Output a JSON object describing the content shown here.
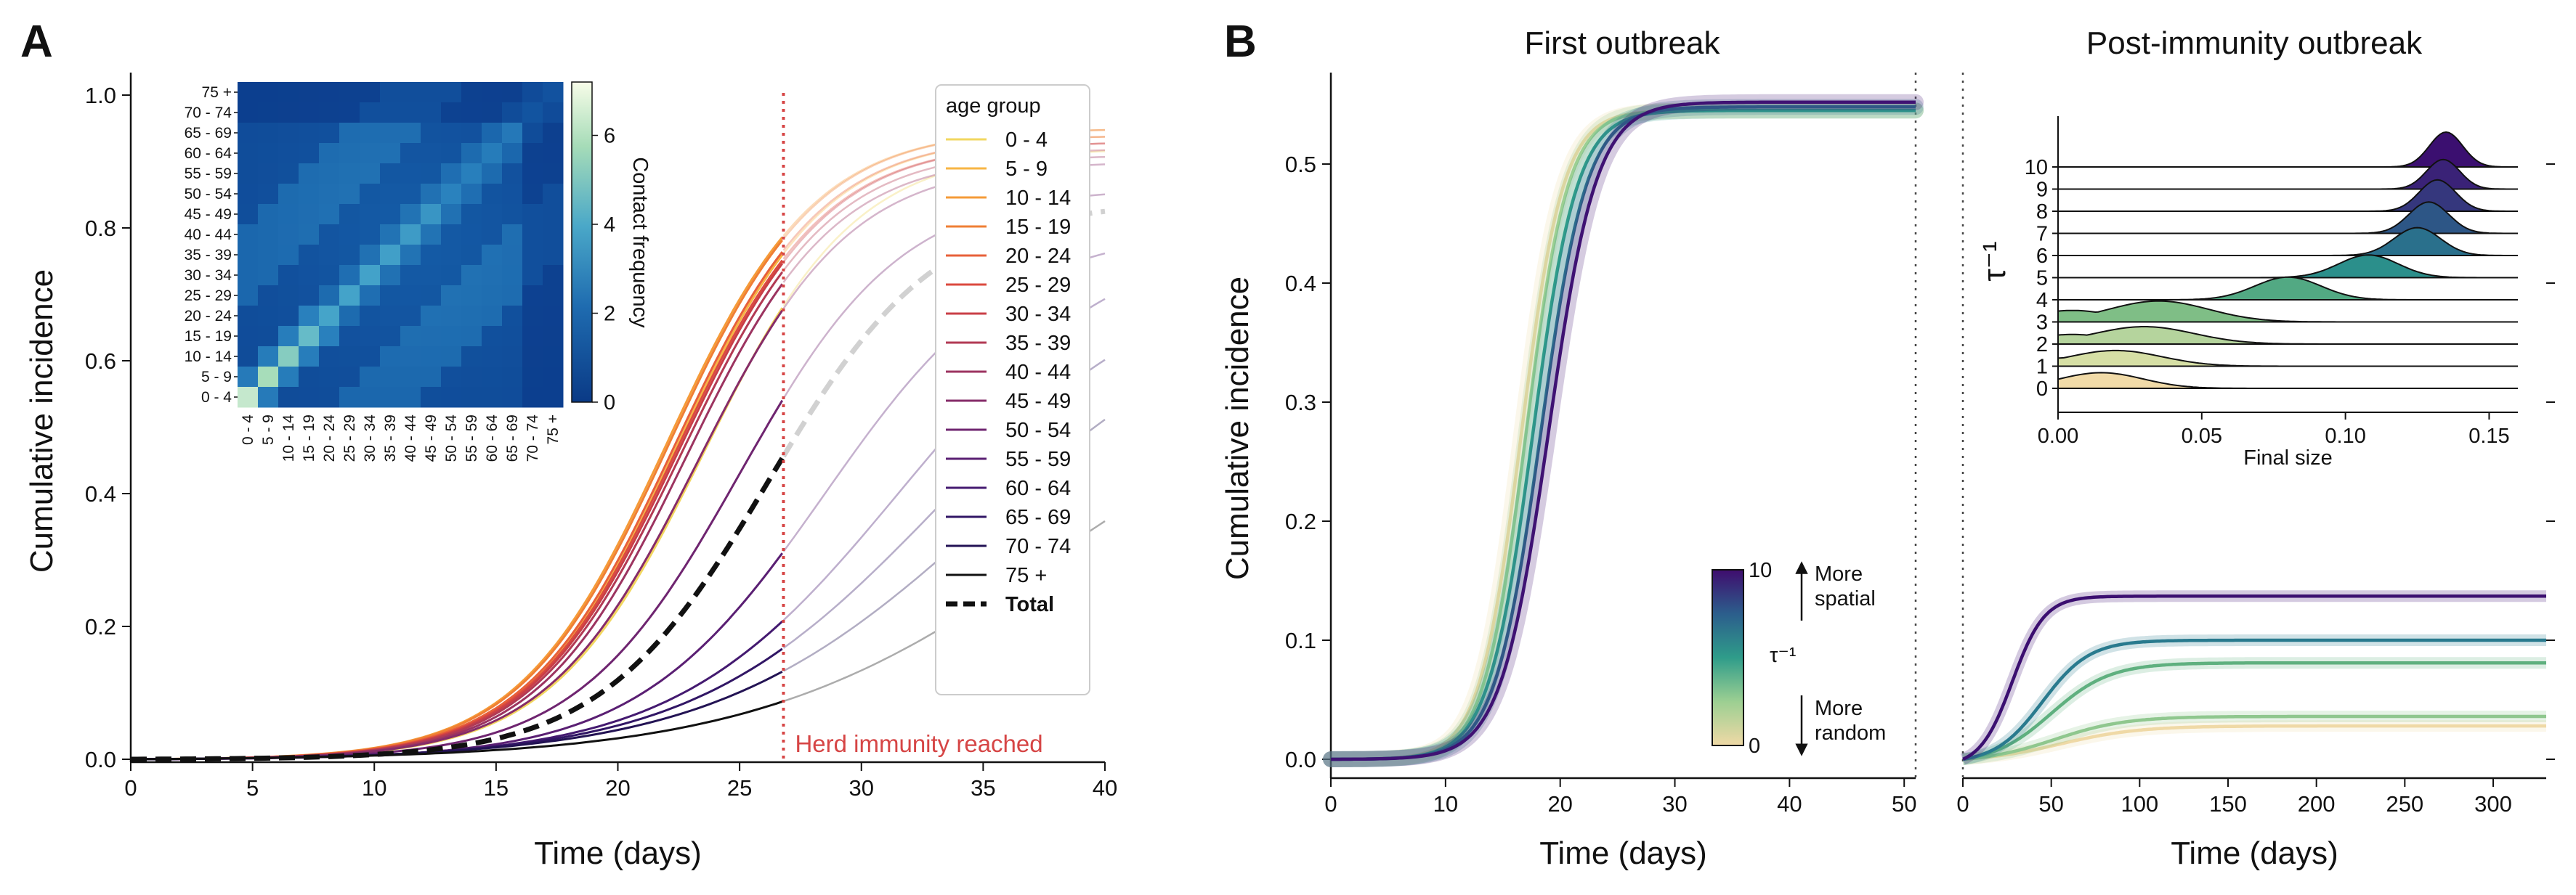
{
  "chart_data": [
    {
      "panel": "A",
      "type": "line",
      "xlabel": "Time (days)",
      "ylabel": "Cumulative incidence",
      "xlim": [
        0,
        40
      ],
      "ylim": [
        0,
        1.0
      ],
      "x_ticks": [
        0,
        5,
        10,
        15,
        20,
        25,
        30,
        35,
        40
      ],
      "y_ticks": [
        0.0,
        0.2,
        0.4,
        0.6,
        0.8,
        1.0
      ],
      "legend_title": "age group",
      "legend_position": "top-right",
      "herd_immunity_day": 26.8,
      "herd_immunity_label": "Herd immunity reached",
      "herd_immunity_color": "#d64545",
      "series": [
        {
          "name": "0 - 4",
          "color": "#f2d760",
          "final": 0.92,
          "mid": 23.5,
          "k": 0.32
        },
        {
          "name": "5 - 9",
          "color": "#f7b545",
          "final": 0.94,
          "mid": 22.4,
          "k": 0.33
        },
        {
          "name": "10 - 14",
          "color": "#f59b38",
          "final": 0.95,
          "mid": 22.0,
          "k": 0.33
        },
        {
          "name": "15 - 19",
          "color": "#ef7f35",
          "final": 0.95,
          "mid": 22.1,
          "k": 0.33
        },
        {
          "name": "20 - 24",
          "color": "#e7603a",
          "final": 0.94,
          "mid": 22.3,
          "k": 0.33
        },
        {
          "name": "25 - 29",
          "color": "#db4a3f",
          "final": 0.93,
          "mid": 22.4,
          "k": 0.33
        },
        {
          "name": "30 - 34",
          "color": "#c93f47",
          "final": 0.93,
          "mid": 22.5,
          "k": 0.33
        },
        {
          "name": "35 - 39",
          "color": "#b23a54",
          "final": 0.92,
          "mid": 22.6,
          "k": 0.33
        },
        {
          "name": "40 - 44",
          "color": "#9c3460",
          "final": 0.91,
          "mid": 22.8,
          "k": 0.33
        },
        {
          "name": "45 - 49",
          "color": "#862c69",
          "final": 0.9,
          "mid": 23.3,
          "k": 0.32
        },
        {
          "name": "50 - 54",
          "color": "#6f2570",
          "final": 0.86,
          "mid": 25.0,
          "k": 0.3
        },
        {
          "name": "55 - 59",
          "color": "#5a1f73",
          "final": 0.8,
          "mid": 28.5,
          "k": 0.26
        },
        {
          "name": "60 - 64",
          "color": "#441a70",
          "final": 0.8,
          "mid": 31.5,
          "k": 0.22
        },
        {
          "name": "65 - 69",
          "color": "#311665",
          "final": 0.75,
          "mid": 33.0,
          "k": 0.2
        },
        {
          "name": "70 - 74",
          "color": "#231354",
          "final": 0.72,
          "mid": 35.0,
          "k": 0.18
        },
        {
          "name": "75 +",
          "color": "#111111",
          "final": 0.62,
          "mid": 38.0,
          "k": 0.16
        }
      ],
      "total": {
        "name": "Total",
        "color": "#111111",
        "final": 0.84,
        "mid": 26.2,
        "k": 0.29
      },
      "inset_heatmap": {
        "type": "heatmap",
        "labels": [
          "0 - 4",
          "5 - 9",
          "10 - 14",
          "15 - 19",
          "20 - 24",
          "25 - 29",
          "30 - 34",
          "35 - 39",
          "40 - 44",
          "45 - 49",
          "50 - 54",
          "55 - 59",
          "60 - 64",
          "65 - 69",
          "70 - 74",
          "75 +"
        ],
        "colorbar_label": "Contact frequency",
        "colorbar_ticks": [
          0,
          2,
          4,
          6
        ],
        "vmax": 7.2
      }
    },
    {
      "panel": "B",
      "title": "First outbreak",
      "type": "line",
      "xlabel": "Time (days)",
      "ylabel": "Cumulative incidence",
      "xlim": [
        0,
        51
      ],
      "ylim": [
        0,
        0.56
      ],
      "x_ticks": [
        0,
        10,
        20,
        30,
        40,
        50
      ],
      "y_ticks": [
        0.0,
        0.1,
        0.2,
        0.3,
        0.4,
        0.5
      ],
      "colorbar_label": "τ⁻¹",
      "colorbar_range": [
        0,
        10
      ],
      "colorbar_top_annotation_1": "More",
      "colorbar_top_annotation_2": "spatial",
      "colorbar_bottom_annotation_1": "More",
      "colorbar_bottom_annotation_2": "random",
      "series": [
        {
          "tau_inv": 0,
          "color": "#efd9a6",
          "final": 0.545,
          "mid": 16.6,
          "k": 0.55
        },
        {
          "tau_inv": 2,
          "color": "#9ccf92",
          "final": 0.545,
          "mid": 17.0,
          "k": 0.55
        },
        {
          "tau_inv": 5,
          "color": "#2f9c8a",
          "final": 0.545,
          "mid": 17.6,
          "k": 0.52
        },
        {
          "tau_inv": 7,
          "color": "#2c6c8c",
          "final": 0.548,
          "mid": 18.3,
          "k": 0.5
        },
        {
          "tau_inv": 10,
          "color": "#3f1273",
          "final": 0.552,
          "mid": 19.0,
          "k": 0.48
        }
      ]
    },
    {
      "panel": "B",
      "title": "Post-immunity outbreak",
      "type": "line",
      "xlabel": "Time (days)",
      "xlim": [
        0,
        330
      ],
      "ylim": [
        0,
        0.56
      ],
      "x_ticks": [
        0,
        50,
        100,
        150,
        200,
        250,
        300
      ],
      "series": [
        {
          "tau_inv": 0,
          "color": "#efd9a6",
          "final": 0.028,
          "mid": 55,
          "k": 0.045
        },
        {
          "tau_inv": 2,
          "color": "#8fc78e",
          "final": 0.036,
          "mid": 52,
          "k": 0.05
        },
        {
          "tau_inv": 4,
          "color": "#5fb07f",
          "final": 0.081,
          "mid": 50,
          "k": 0.06
        },
        {
          "tau_inv": 6,
          "color": "#297a8e",
          "final": 0.1,
          "mid": 45,
          "k": 0.075
        },
        {
          "tau_inv": 10,
          "color": "#3b0f70",
          "final": 0.137,
          "mid": 28,
          "k": 0.11
        }
      ],
      "inset_ridgeline": {
        "type": "area",
        "xlabel": "Final size",
        "ylabel": "τ⁻¹",
        "xlim": [
          0,
          0.16
        ],
        "x_ticks": [
          "0.00",
          "0.05",
          "0.10",
          "0.15"
        ],
        "ridges": [
          {
            "tau_inv": 0,
            "color": "#f1dba8",
            "peak": 0.015,
            "width": 0.025,
            "height": 0.9
          },
          {
            "tau_inv": 1,
            "color": "#d6dfa5",
            "peak": 0.02,
            "width": 0.028,
            "height": 0.9
          },
          {
            "tau_inv": 2,
            "color": "#b5d49d",
            "peak": 0.03,
            "width": 0.03,
            "height": 1.0
          },
          {
            "tau_inv": 3,
            "color": "#7fbe86",
            "peak": 0.035,
            "width": 0.03,
            "height": 1.2
          },
          {
            "tau_inv": 4,
            "color": "#52a983",
            "peak": 0.08,
            "width": 0.02,
            "height": 1.3
          },
          {
            "tau_inv": 5,
            "color": "#2b8f8b",
            "peak": 0.108,
            "width": 0.018,
            "height": 1.3
          },
          {
            "tau_inv": 6,
            "color": "#2a708c",
            "peak": 0.125,
            "width": 0.014,
            "height": 1.6
          },
          {
            "tau_inv": 7,
            "color": "#2d5686",
            "peak": 0.129,
            "width": 0.012,
            "height": 1.8
          },
          {
            "tau_inv": 8,
            "color": "#35377d",
            "peak": 0.132,
            "width": 0.011,
            "height": 1.8
          },
          {
            "tau_inv": 9,
            "color": "#3a2277",
            "peak": 0.134,
            "width": 0.01,
            "height": 1.7
          },
          {
            "tau_inv": 10,
            "color": "#3b0f70",
            "peak": 0.135,
            "width": 0.01,
            "height": 2.0
          }
        ]
      }
    }
  ],
  "labels": {
    "panel_a": "A",
    "panel_b": "B",
    "b_left_title": "First outbreak",
    "b_right_title": "Post-immunity outbreak"
  }
}
